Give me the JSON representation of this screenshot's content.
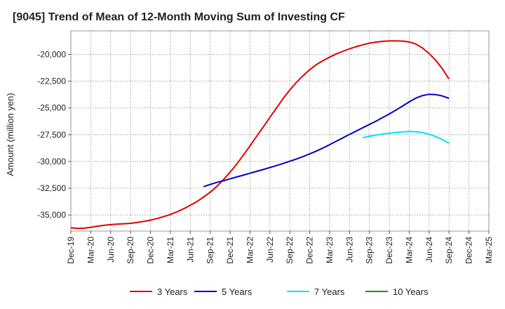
{
  "chart_data": {
    "type": "line",
    "title": "[9045]  Trend of Mean of 12-Month Moving Sum of Investing CF",
    "xlabel": "",
    "ylabel": "Amount (million yen)",
    "ylim": [
      -36500,
      -17800
    ],
    "yticks": [
      -20000,
      -22500,
      -25000,
      -27500,
      -30000,
      -32500,
      -35000
    ],
    "ytick_labels": [
      "-20,000",
      "-22,500",
      "-25,000",
      "-27,500",
      "-30,000",
      "-32,500",
      "-35,000"
    ],
    "x_start": "Dec-19",
    "x_end": "Mar-25",
    "xtick_labels": [
      "Dec-19",
      "Mar-20",
      "Jun-20",
      "Sep-20",
      "Dec-20",
      "Mar-21",
      "Jun-21",
      "Sep-21",
      "Dec-21",
      "Mar-22",
      "Jun-22",
      "Sep-22",
      "Dec-22",
      "Mar-23",
      "Jun-23",
      "Sep-23",
      "Dec-23",
      "Mar-24",
      "Jun-24",
      "Sep-24",
      "Dec-24",
      "Mar-25"
    ],
    "grid": true,
    "legend_position": "bottom",
    "series": [
      {
        "name": "3 Years",
        "color": "#dd0000",
        "points": [
          [
            "Dec-19",
            -36200
          ],
          [
            "Jan-20",
            -36250
          ],
          [
            "Feb-20",
            -36230
          ],
          [
            "Mar-20",
            -36150
          ],
          [
            "Apr-20",
            -36050
          ],
          [
            "May-20",
            -35970
          ],
          [
            "Jun-20",
            -35900
          ],
          [
            "Jul-20",
            -35850
          ],
          [
            "Aug-20",
            -35820
          ],
          [
            "Sep-20",
            -35780
          ],
          [
            "Oct-20",
            -35700
          ],
          [
            "Nov-20",
            -35600
          ],
          [
            "Dec-20",
            -35480
          ],
          [
            "Jan-21",
            -35330
          ],
          [
            "Feb-21",
            -35150
          ],
          [
            "Mar-21",
            -34950
          ],
          [
            "Apr-21",
            -34700
          ],
          [
            "May-21",
            -34420
          ],
          [
            "Jun-21",
            -34100
          ],
          [
            "Jul-21",
            -33750
          ],
          [
            "Aug-21",
            -33330
          ],
          [
            "Sep-21",
            -32870
          ],
          [
            "Oct-21",
            -32330
          ],
          [
            "Nov-21",
            -31700
          ],
          [
            "Dec-21",
            -31000
          ],
          [
            "Jan-22",
            -30250
          ],
          [
            "Feb-22",
            -29400
          ],
          [
            "Mar-22",
            -28550
          ],
          [
            "Apr-22",
            -27650
          ],
          [
            "May-22",
            -26780
          ],
          [
            "Jun-22",
            -25880
          ],
          [
            "Jul-22",
            -25000
          ],
          [
            "Aug-22",
            -24120
          ],
          [
            "Sep-22",
            -23320
          ],
          [
            "Oct-22",
            -22600
          ],
          [
            "Nov-22",
            -21980
          ],
          [
            "Dec-22",
            -21430
          ],
          [
            "Jan-23",
            -20950
          ],
          [
            "Feb-23",
            -20580
          ],
          [
            "Mar-23",
            -20250
          ],
          [
            "Apr-23",
            -19950
          ],
          [
            "May-23",
            -19700
          ],
          [
            "Jun-23",
            -19470
          ],
          [
            "Jul-23",
            -19270
          ],
          [
            "Aug-23",
            -19100
          ],
          [
            "Sep-23",
            -18950
          ],
          [
            "Oct-23",
            -18850
          ],
          [
            "Nov-23",
            -18780
          ],
          [
            "Dec-23",
            -18740
          ],
          [
            "Jan-24",
            -18730
          ],
          [
            "Feb-24",
            -18750
          ],
          [
            "Mar-24",
            -18830
          ],
          [
            "Apr-24",
            -19030
          ],
          [
            "May-24",
            -19400
          ],
          [
            "Jun-24",
            -19920
          ],
          [
            "Jul-24",
            -20550
          ],
          [
            "Aug-24",
            -21350
          ],
          [
            "Sep-24",
            -22300
          ]
        ]
      },
      {
        "name": "5 Years",
        "color": "#0000cc",
        "points": [
          [
            "Aug-21",
            -32350
          ],
          [
            "Sep-21",
            -32150
          ],
          [
            "Oct-21",
            -31950
          ],
          [
            "Nov-21",
            -31800
          ],
          [
            "Dec-21",
            -31620
          ],
          [
            "Jan-22",
            -31450
          ],
          [
            "Feb-22",
            -31280
          ],
          [
            "Mar-22",
            -31100
          ],
          [
            "Apr-22",
            -30920
          ],
          [
            "May-22",
            -30750
          ],
          [
            "Jun-22",
            -30570
          ],
          [
            "Jul-22",
            -30380
          ],
          [
            "Aug-22",
            -30190
          ],
          [
            "Sep-22",
            -29980
          ],
          [
            "Oct-22",
            -29770
          ],
          [
            "Nov-22",
            -29540
          ],
          [
            "Dec-22",
            -29290
          ],
          [
            "Jan-23",
            -29030
          ],
          [
            "Feb-23",
            -28740
          ],
          [
            "Mar-23",
            -28430
          ],
          [
            "Apr-23",
            -28110
          ],
          [
            "May-23",
            -27790
          ],
          [
            "Jun-23",
            -27470
          ],
          [
            "Jul-23",
            -27160
          ],
          [
            "Aug-23",
            -26850
          ],
          [
            "Sep-23",
            -26540
          ],
          [
            "Oct-23",
            -26230
          ],
          [
            "Nov-23",
            -25900
          ],
          [
            "Dec-23",
            -25560
          ],
          [
            "Jan-24",
            -25200
          ],
          [
            "Feb-24",
            -24820
          ],
          [
            "Mar-24",
            -24430
          ],
          [
            "Apr-24",
            -24080
          ],
          [
            "May-24",
            -23840
          ],
          [
            "Jun-24",
            -23720
          ],
          [
            "Jul-24",
            -23750
          ],
          [
            "Aug-24",
            -23880
          ],
          [
            "Sep-24",
            -24100
          ]
        ]
      },
      {
        "name": "7 Years",
        "color": "#00e5ee",
        "points": [
          [
            "Aug-23",
            -27780
          ],
          [
            "Sep-23",
            -27650
          ],
          [
            "Oct-23",
            -27540
          ],
          [
            "Nov-23",
            -27440
          ],
          [
            "Dec-23",
            -27360
          ],
          [
            "Jan-24",
            -27290
          ],
          [
            "Feb-24",
            -27230
          ],
          [
            "Mar-24",
            -27200
          ],
          [
            "Apr-24",
            -27220
          ],
          [
            "May-24",
            -27300
          ],
          [
            "Jun-24",
            -27450
          ],
          [
            "Jul-24",
            -27680
          ],
          [
            "Aug-24",
            -27950
          ],
          [
            "Sep-24",
            -28300
          ]
        ]
      },
      {
        "name": "10 Years",
        "color": "#228b22",
        "points": []
      }
    ]
  }
}
